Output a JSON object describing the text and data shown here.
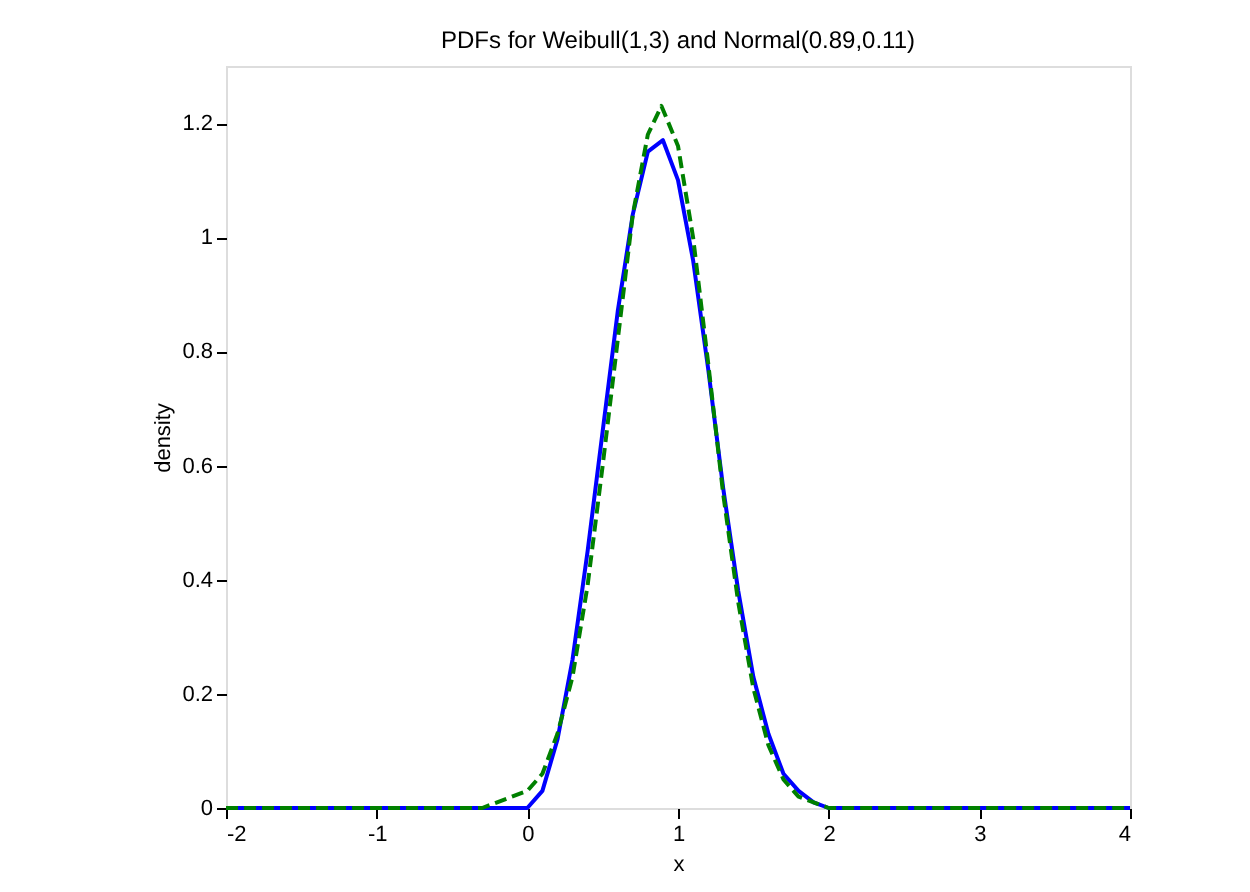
{
  "chart_data": {
    "type": "line",
    "title": "PDFs for Weibull(1,3) and Normal(0.89,0.11)",
    "xlabel": "x",
    "ylabel": "density",
    "xlim": [
      -2,
      4
    ],
    "xticks": [
      -2,
      -1,
      0,
      1,
      2,
      3,
      4
    ],
    "ylim": [
      0,
      1.3
    ],
    "yticks": [
      0,
      0.2,
      0.4,
      0.6,
      0.8,
      1,
      1.2
    ],
    "grid": false,
    "marker": "none",
    "series": [
      {
        "color": "#0000ff",
        "line_style": "solid",
        "x": [
          -2,
          0,
          0.1,
          0.2,
          0.3,
          0.4,
          0.5,
          0.6,
          0.7,
          0.8,
          0.9,
          1.0,
          1.1,
          1.2,
          1.3,
          1.4,
          1.5,
          1.6,
          1.7,
          1.8,
          1.9,
          2.0,
          2.2,
          4
        ],
        "values": [
          0,
          0,
          0.03,
          0.12,
          0.26,
          0.45,
          0.66,
          0.87,
          1.04,
          1.15,
          1.17,
          1.1,
          0.96,
          0.77,
          0.56,
          0.38,
          0.23,
          0.13,
          0.06,
          0.03,
          0.01,
          0,
          0,
          0
        ]
      },
      {
        "color": "#008000",
        "line_style": "dashed",
        "x": [
          -2,
          -0.3,
          0,
          0.1,
          0.2,
          0.3,
          0.4,
          0.5,
          0.6,
          0.7,
          0.8,
          0.89,
          1.0,
          1.1,
          1.2,
          1.3,
          1.4,
          1.5,
          1.6,
          1.7,
          1.8,
          1.9,
          2.0,
          2.2,
          4
        ],
        "values": [
          0,
          0,
          0.03,
          0.06,
          0.13,
          0.23,
          0.39,
          0.6,
          0.82,
          1.04,
          1.18,
          1.23,
          1.16,
          1.0,
          0.78,
          0.55,
          0.36,
          0.21,
          0.11,
          0.05,
          0.02,
          0.01,
          0,
          0,
          0
        ]
      }
    ]
  }
}
